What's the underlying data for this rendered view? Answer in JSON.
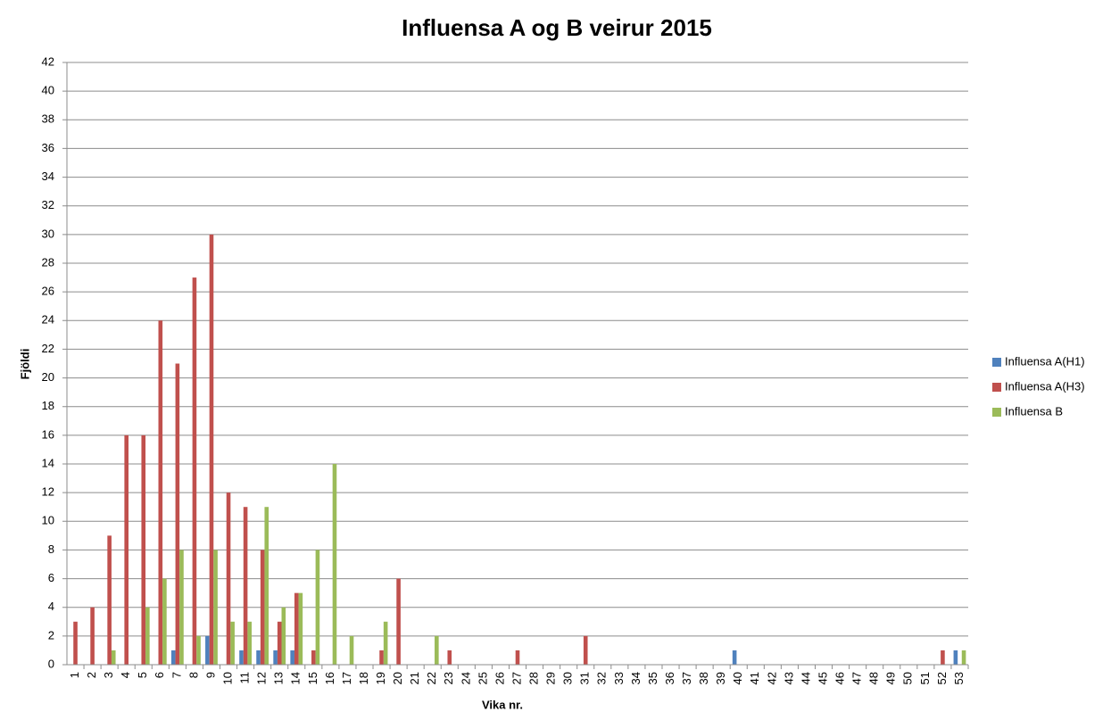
{
  "chart_data": {
    "type": "bar",
    "title": "Influensa A og B veirur 2015",
    "x_label": "Vika nr.",
    "y_label": "Fjöldi",
    "categories": [
      "1",
      "2",
      "3",
      "4",
      "5",
      "6",
      "7",
      "8",
      "9",
      "10",
      "11",
      "12",
      "13",
      "14",
      "15",
      "16",
      "17",
      "18",
      "19",
      "20",
      "21",
      "22",
      "23",
      "24",
      "25",
      "26",
      "27",
      "28",
      "29",
      "30",
      "31",
      "32",
      "33",
      "34",
      "35",
      "36",
      "37",
      "38",
      "39",
      "40",
      "41",
      "42",
      "43",
      "44",
      "45",
      "46",
      "47",
      "48",
      "49",
      "50",
      "51",
      "52",
      "53"
    ],
    "series": [
      {
        "name": "Influensa A(H1)",
        "color": "#4f81bd",
        "values": [
          0,
          0,
          0,
          0,
          0,
          0,
          1,
          0,
          2,
          0,
          1,
          1,
          1,
          1,
          0,
          0,
          0,
          0,
          0,
          0,
          0,
          0,
          0,
          0,
          0,
          0,
          0,
          0,
          0,
          0,
          0,
          0,
          0,
          0,
          0,
          0,
          0,
          0,
          0,
          1,
          0,
          0,
          0,
          0,
          0,
          0,
          0,
          0,
          0,
          0,
          0,
          0,
          1
        ]
      },
      {
        "name": "Influensa A(H3)",
        "color": "#c0504d",
        "values": [
          3,
          4,
          9,
          16,
          16,
          24,
          21,
          27,
          30,
          12,
          11,
          8,
          3,
          5,
          1,
          0,
          0,
          0,
          1,
          6,
          0,
          0,
          1,
          0,
          0,
          0,
          1,
          0,
          0,
          0,
          2,
          0,
          0,
          0,
          0,
          0,
          0,
          0,
          0,
          0,
          0,
          0,
          0,
          0,
          0,
          0,
          0,
          0,
          0,
          0,
          0,
          1,
          0
        ]
      },
      {
        "name": "Influensa B",
        "color": "#9bbb59",
        "values": [
          0,
          0,
          1,
          0,
          4,
          6,
          8,
          2,
          8,
          3,
          3,
          11,
          4,
          5,
          8,
          14,
          2,
          0,
          3,
          0,
          0,
          2,
          0,
          0,
          0,
          0,
          0,
          0,
          0,
          0,
          0,
          0,
          0,
          0,
          0,
          0,
          0,
          0,
          0,
          0,
          0,
          0,
          0,
          0,
          0,
          0,
          0,
          0,
          0,
          0,
          0,
          0,
          1
        ]
      }
    ],
    "ylim": [
      0,
      42
    ],
    "yticks": [
      0,
      2,
      4,
      6,
      8,
      10,
      12,
      14,
      16,
      18,
      20,
      22,
      24,
      26,
      28,
      30,
      32,
      34,
      36,
      38,
      40,
      42
    ],
    "grid": true,
    "legend": "right"
  }
}
